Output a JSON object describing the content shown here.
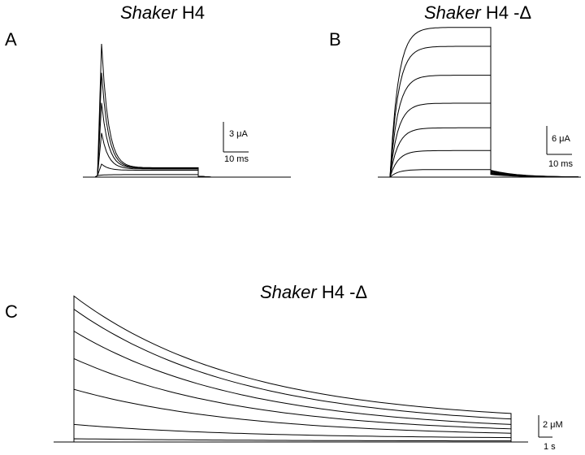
{
  "panels": {
    "A": {
      "letter": "A",
      "title_italic": "Shaker",
      "title_rest": " H4",
      "scale_y": "3 μA",
      "scale_x": "10 ms"
    },
    "B": {
      "letter": "B",
      "title_italic": "Shaker",
      "title_rest": " H4 -Δ",
      "scale_y": "6 μA",
      "scale_x": "10 ms"
    },
    "C": {
      "letter": "C",
      "title_italic": "Shaker",
      "title_rest": " H4 -Δ",
      "scale_y": "2 μM",
      "scale_x": "1 s"
    }
  },
  "chart_data": [
    {
      "type": "line",
      "panel": "A",
      "description_units": "current traces, scale bars 3 μA / 10 ms",
      "x_units": "ms",
      "y_units": "μA",
      "series": [
        {
          "values_peak": 13.3,
          "steady": 0.75
        },
        {
          "values_peak": 10.4,
          "steady": 0.72
        },
        {
          "values_peak": 7.4,
          "steady": 0.7
        },
        {
          "values_peak": 4.4,
          "steady": 0.65
        },
        {
          "values_peak": 1.3,
          "steady": 0.55
        },
        {
          "values_peak": 0.2,
          "steady": 0.2
        }
      ]
    },
    {
      "type": "line",
      "panel": "B",
      "description_units": "current traces, scale bars 6 μA / 10 ms",
      "x_units": "ms",
      "y_units": "μA",
      "series": [
        {
          "plateau": 31.6
        },
        {
          "plateau": 27.6
        },
        {
          "plateau": 21.5
        },
        {
          "plateau": 15.6
        },
        {
          "plateau": 10.4
        },
        {
          "plateau": 5.6
        },
        {
          "plateau": 1.6
        }
      ]
    },
    {
      "type": "line",
      "panel": "C",
      "description_units": "decaying traces, scale bars 2 μM / 1 s",
      "x_units": "s",
      "y_units": "μM",
      "series": [
        {
          "start": 13.3,
          "end": 2.6
        },
        {
          "start": 12.1,
          "end": 2.1
        },
        {
          "start": 10.1,
          "end": 1.6
        },
        {
          "start": 7.6,
          "end": 1.2
        },
        {
          "start": 4.8,
          "end": 0.8
        },
        {
          "start": 1.6,
          "end": 0.4
        },
        {
          "start": 0.3,
          "end": 0.1
        }
      ]
    }
  ]
}
